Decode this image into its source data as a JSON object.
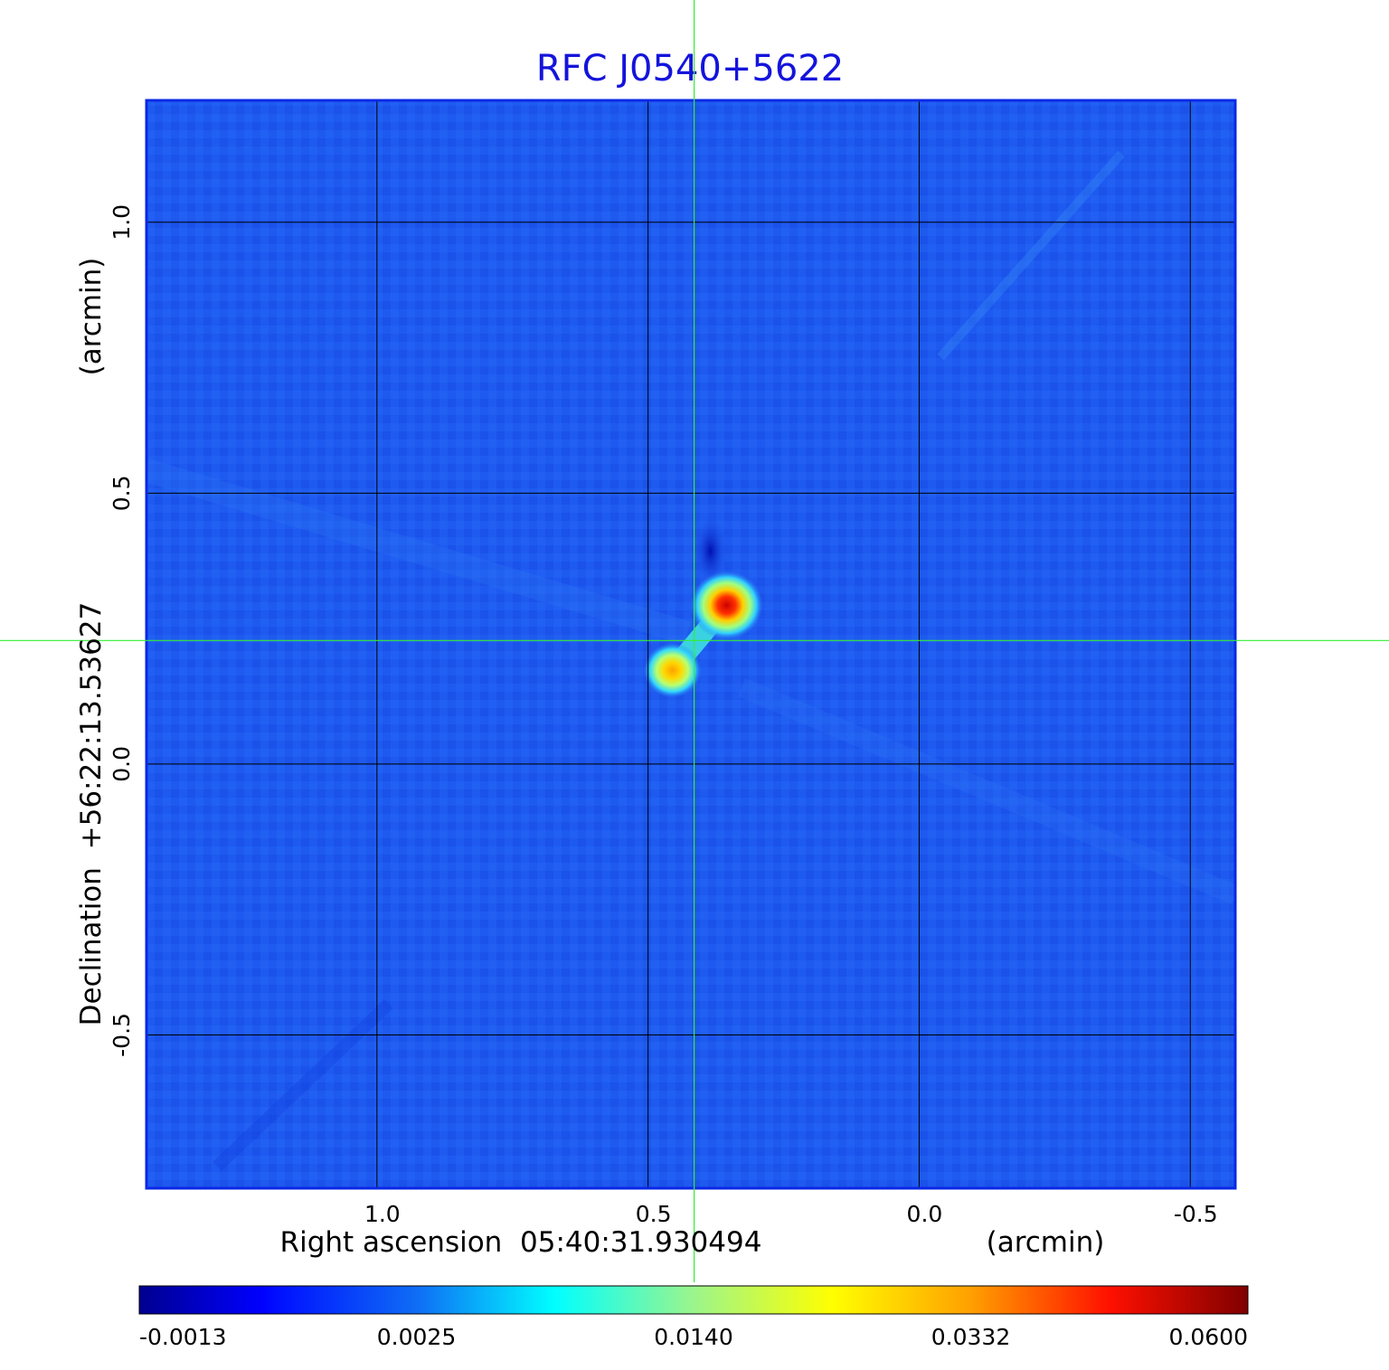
{
  "chart_data": {
    "type": "heatmap",
    "title": "RFC J0540+5622",
    "xlabel": "Right ascension  05:40:31.930494",
    "xunit": "(arcmin)",
    "ylabel": "Declination  +56:22:13.53627",
    "yunit": "(arcmin)",
    "x_ticks": [
      "1.0",
      "0.5",
      "0.0",
      "-0.5"
    ],
    "x_tick_values": [
      1.0,
      0.5,
      0.0,
      -0.5
    ],
    "y_ticks": [
      "1.0",
      "0.5",
      "0.0",
      "-0.5"
    ],
    "y_tick_values": [
      1.0,
      0.5,
      0.0,
      -0.5
    ],
    "xlim": [
      1.425,
      -0.583
    ],
    "ylim": [
      -0.783,
      1.225
    ],
    "grid": true,
    "crosshair": {
      "x": 0.415,
      "y": 0.228
    },
    "colorbar": {
      "ticks": [
        "-0.0013",
        "0.0025",
        "0.0140",
        "0.0332",
        "0.0600"
      ],
      "values": [
        -0.0013,
        0.0025,
        0.014,
        0.0332,
        0.06
      ],
      "colormap": "jet"
    },
    "components": [
      {
        "x": 0.355,
        "y": 0.293,
        "peak": 0.06
      },
      {
        "x": 0.455,
        "y": 0.173,
        "peak": 0.036
      }
    ],
    "colors": {
      "title": "#1414dc",
      "frame": "#0a28e6",
      "background": "#1e5af0",
      "crosshair": "#33ee33",
      "grid": "#000000"
    }
  }
}
